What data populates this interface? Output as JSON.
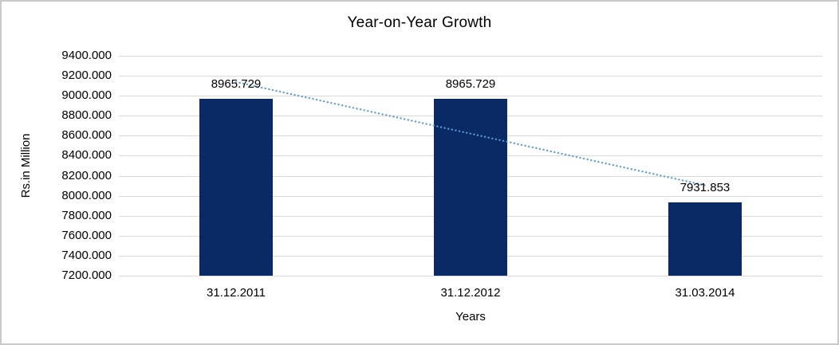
{
  "window": {
    "background": "#ffffff",
    "frame_border_color": "#c9c9c9"
  },
  "chart_data": {
    "type": "bar",
    "title": "Year-on-Year Growth",
    "xlabel": "Years",
    "ylabel": "Rs.in Million",
    "categories": [
      "31.12.2011",
      "31.12.2012",
      "31.03.2014"
    ],
    "values": [
      8965.729,
      8965.729,
      7931.853
    ],
    "data_labels": [
      "8965.729",
      "8965.729",
      "7931.853"
    ],
    "ylim": [
      7200,
      9400
    ],
    "ytick_step": 200,
    "ytick_labels": [
      "9400.000",
      "9200.000",
      "9000.000",
      "8800.000",
      "8600.000",
      "8400.000",
      "8200.000",
      "8000.000",
      "7800.000",
      "7600.000",
      "7400.000",
      "7200.000"
    ],
    "grid": true,
    "legend": "none",
    "bar_color": "#0a2a66",
    "gridline_color": "#d9d9d9",
    "text_color": "#000000",
    "trendline": {
      "type": "linear",
      "style": "dotted",
      "color": "#5b9bd5"
    }
  }
}
